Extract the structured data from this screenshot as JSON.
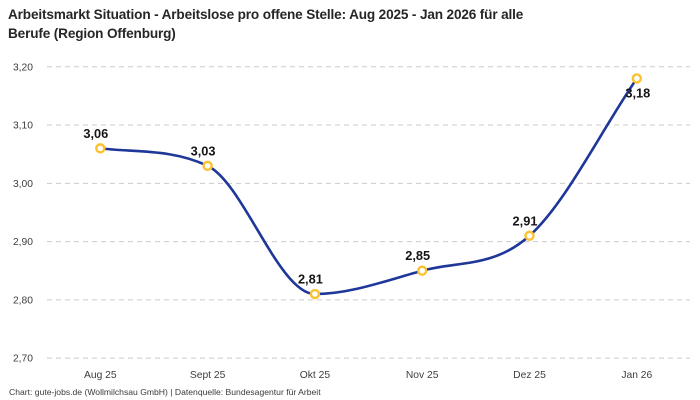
{
  "header": {
    "title_line1": "Arbeitsmarkt Situation - Arbeitslose pro offene Stelle: Aug 2025 - Jan 2026 für alle",
    "title_line2": "Berufe (Region Offenburg)"
  },
  "footer": {
    "credit": "Chart: gute-jobs.de (Wollmilchsau GmbH) | Datenquelle: Bundesagentur für Arbeit"
  },
  "chart_data": {
    "type": "line",
    "title": "Arbeitsmarkt Situation - Arbeitslose pro offene Stelle: Aug 2025 - Jan 2026 für alle Berufe (Region Offenburg)",
    "categories": [
      "Aug 25",
      "Sept 25",
      "Okt 25",
      "Nov 25",
      "Dez 25",
      "Jan 26"
    ],
    "series": [
      {
        "name": "Arbeitslose pro offene Stelle",
        "values": [
          3.06,
          3.03,
          2.81,
          2.85,
          2.91,
          3.18
        ]
      }
    ],
    "value_labels": [
      "3,06",
      "3,03",
      "2,81",
      "2,85",
      "2,91",
      "3,18"
    ],
    "label_positions": [
      "above",
      "above",
      "above",
      "above",
      "above",
      "below"
    ],
    "y_ticks": [
      "3,20",
      "3,10",
      "3,00",
      "2,90",
      "2,80",
      "2,70"
    ],
    "ylim": [
      2.7,
      3.2
    ],
    "y_step": 0.1,
    "grid": "dashed-horizontal",
    "legend": "none",
    "curve": "monotone",
    "colors": {
      "line": "#1e3799",
      "marker_ring": "#fcc22d",
      "marker_fill": "#ffffff",
      "grid": "#cbcbcb",
      "value_label": "#151515",
      "axis_text": "#3d3d3d"
    }
  }
}
